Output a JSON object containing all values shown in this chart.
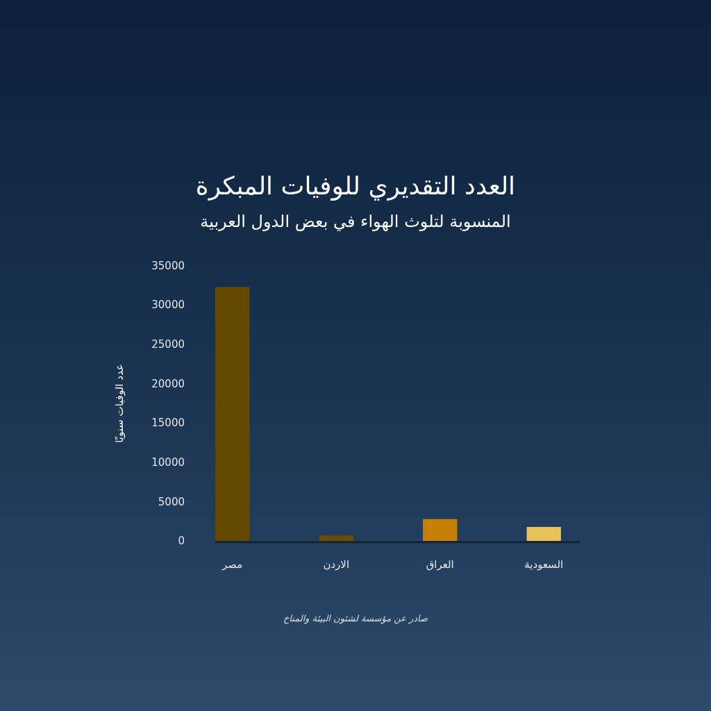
{
  "chart_data": {
    "type": "bar",
    "title": "العدد التقديري للوفيات المبكرة",
    "subtitle": "المنسوبة لتلوث الهواء في بعض الدول العربية",
    "ylabel": "عدد الوفيات سنويًا",
    "categories": [
      "مصر",
      "الاردن",
      "العراق",
      "السعودية"
    ],
    "values": [
      32300,
      700,
      2800,
      1800
    ],
    "colors": [
      "#634a00",
      "#6b4d00",
      "#c88004",
      "#e8c35c"
    ],
    "ylim": [
      0,
      35000
    ],
    "yticks": [
      0,
      5000,
      10000,
      15000,
      20000,
      25000,
      30000,
      35000
    ],
    "annotations": [
      "صادر عن مؤسسة لشئون البيئة والمناخ"
    ]
  }
}
